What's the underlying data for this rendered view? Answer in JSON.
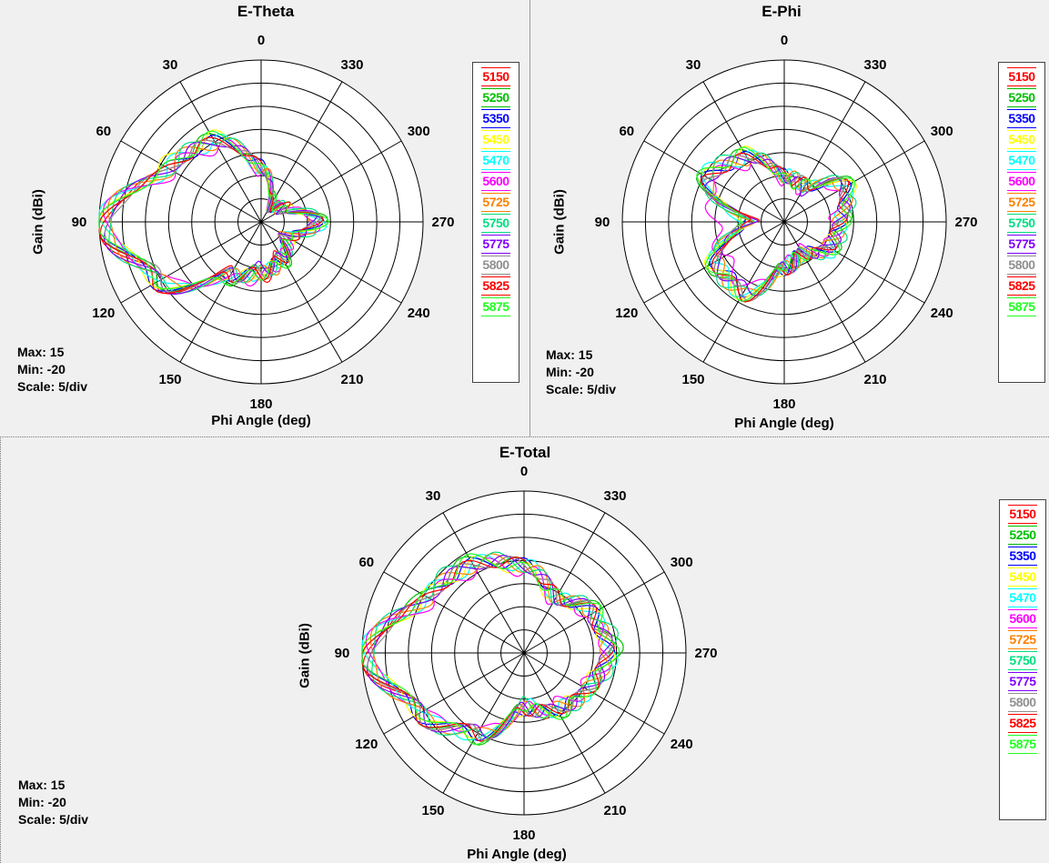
{
  "panels": [
    {
      "id": "theta",
      "title": "E-Theta",
      "xlabel": "Phi Angle  (deg)",
      "ylabel": "Gain (dBi)",
      "max_label": "Max: 15",
      "min_label": "Min: -20",
      "scale_label": "Scale: 5/div"
    },
    {
      "id": "phi",
      "title": "E-Phi",
      "xlabel": "Phi Angle  (deg)",
      "ylabel": "Gain (dBi)",
      "max_label": "Max: 15",
      "min_label": "Min: -20",
      "scale_label": "Scale: 5/div"
    },
    {
      "id": "total",
      "title": "E-Total",
      "xlabel": "Phi Angle  (deg)",
      "ylabel": "Gain (dBi)",
      "max_label": "Max: 15",
      "min_label": "Min: -20",
      "scale_label": "Scale: 5/div"
    }
  ],
  "legend": [
    {
      "label": "5150",
      "color": "#ff0000"
    },
    {
      "label": "5250",
      "color": "#00c000"
    },
    {
      "label": "5350",
      "color": "#0000ff"
    },
    {
      "label": "5450",
      "color": "#ffff00"
    },
    {
      "label": "5470",
      "color": "#00ffff"
    },
    {
      "label": "5600",
      "color": "#ff00ff"
    },
    {
      "label": "5725",
      "color": "#ff8000"
    },
    {
      "label": "5750",
      "color": "#00e080"
    },
    {
      "label": "5775",
      "color": "#8000ff"
    },
    {
      "label": "5800",
      "color": "#909090"
    },
    {
      "label": "5825",
      "color": "#ff0000"
    },
    {
      "label": "5875",
      "color": "#20ff20"
    }
  ],
  "chart_data": [
    {
      "type": "polar-line",
      "title": "E-Theta",
      "xlabel": "Phi Angle  (deg)",
      "ylabel": "Gain (dBi)",
      "rlim": [
        -20,
        15
      ],
      "r_step": 5,
      "grid": true,
      "legend_position": "right",
      "angle_ticks": [
        0,
        30,
        60,
        90,
        120,
        150,
        180,
        210,
        240,
        270,
        300,
        330
      ],
      "angle_direction": "counterclockwise",
      "zero_location": "top",
      "phi": [
        0,
        30,
        60,
        90,
        120,
        150,
        180,
        210,
        240,
        270,
        300,
        330
      ],
      "series": [
        {
          "name": "5150",
          "values": [
            -8,
            0,
            3,
            14,
            6,
            -8,
            -8,
            -12,
            -14,
            -8,
            -15,
            -16
          ]
        },
        {
          "name": "5250",
          "values": [
            -8,
            1,
            3,
            14,
            5,
            -6,
            -10,
            -10,
            -13,
            -7,
            -14,
            -15
          ]
        },
        {
          "name": "5350",
          "values": [
            -8,
            0,
            3,
            14,
            6,
            -7,
            -9,
            -11,
            -14,
            -8,
            -15,
            -16
          ]
        },
        {
          "name": "5450",
          "values": [
            -9,
            1,
            4,
            13,
            6,
            -7,
            -9,
            -11,
            -13,
            -8,
            -14,
            -16
          ]
        },
        {
          "name": "5470",
          "values": [
            -9,
            0,
            3,
            14,
            5,
            -6,
            -9,
            -11,
            -14,
            -7,
            -15,
            -16
          ]
        },
        {
          "name": "5600",
          "values": [
            -9,
            -1,
            2,
            14,
            4,
            -6,
            -8,
            -11,
            -13,
            -8,
            -14,
            -16
          ]
        },
        {
          "name": "5725",
          "values": [
            -8,
            0,
            3,
            14,
            5,
            -7,
            -9,
            -10,
            -14,
            -8,
            -15,
            -16
          ]
        },
        {
          "name": "5750",
          "values": [
            -8,
            1,
            3,
            14,
            6,
            -7,
            -9,
            -11,
            -13,
            -7,
            -14,
            -16
          ]
        },
        {
          "name": "5775",
          "values": [
            -8,
            0,
            3,
            14,
            6,
            -7,
            -10,
            -11,
            -14,
            -8,
            -15,
            -16
          ]
        },
        {
          "name": "5800",
          "values": [
            -8,
            0,
            3,
            13,
            5,
            -7,
            -9,
            -11,
            -14,
            -8,
            -15,
            -16
          ]
        },
        {
          "name": "5825",
          "values": [
            -8,
            0,
            3,
            14,
            6,
            -7,
            -9,
            -11,
            -13,
            -8,
            -14,
            -16
          ]
        },
        {
          "name": "5875",
          "values": [
            -9,
            1,
            3,
            14,
            5,
            -6,
            -9,
            -10,
            -14,
            -7,
            -15,
            -15
          ]
        }
      ]
    },
    {
      "type": "polar-line",
      "title": "E-Phi",
      "xlabel": "Phi Angle  (deg)",
      "ylabel": "Gain (dBi)",
      "rlim": [
        -20,
        15
      ],
      "r_step": 5,
      "grid": true,
      "legend_position": "right",
      "angle_ticks": [
        0,
        30,
        60,
        90,
        120,
        150,
        180,
        210,
        240,
        270,
        300,
        330
      ],
      "angle_direction": "counterclockwise",
      "zero_location": "top",
      "phi": [
        0,
        30,
        60,
        90,
        120,
        150,
        180,
        210,
        240,
        270,
        300,
        330
      ],
      "series": [
        {
          "name": "5150",
          "values": [
            -10,
            -4,
            -1,
            -14,
            -3,
            -2,
            -10,
            -12,
            -9,
            -8,
            -5,
            -11
          ]
        },
        {
          "name": "5250",
          "values": [
            -10,
            -3,
            0,
            -12,
            -2,
            -2,
            -11,
            -12,
            -8,
            -7,
            -4,
            -11
          ]
        },
        {
          "name": "5350",
          "values": [
            -10,
            -4,
            -1,
            -13,
            -3,
            -3,
            -10,
            -13,
            -9,
            -8,
            -5,
            -12
          ]
        },
        {
          "name": "5450",
          "values": [
            -11,
            -3,
            -1,
            -12,
            -2,
            -2,
            -10,
            -12,
            -9,
            -8,
            -4,
            -11
          ]
        },
        {
          "name": "5470",
          "values": [
            -10,
            -4,
            0,
            -11,
            -3,
            -2,
            -11,
            -12,
            -8,
            -8,
            -5,
            -11
          ]
        },
        {
          "name": "5600",
          "values": [
            -11,
            -5,
            -2,
            -5,
            -5,
            -4,
            -11,
            -13,
            -9,
            -9,
            -6,
            -12
          ]
        },
        {
          "name": "5725",
          "values": [
            -10,
            -4,
            -1,
            -12,
            -3,
            -2,
            -10,
            -12,
            -9,
            -8,
            -5,
            -11
          ]
        },
        {
          "name": "5750",
          "values": [
            -10,
            -3,
            0,
            -12,
            -2,
            -2,
            -10,
            -12,
            -8,
            -7,
            -4,
            -11
          ]
        },
        {
          "name": "5775",
          "values": [
            -10,
            -4,
            -1,
            -13,
            -3,
            -3,
            -10,
            -12,
            -9,
            -8,
            -5,
            -12
          ]
        },
        {
          "name": "5800",
          "values": [
            -10,
            -4,
            -1,
            -12,
            -3,
            -2,
            -10,
            -12,
            -9,
            -8,
            -5,
            -11
          ]
        },
        {
          "name": "5825",
          "values": [
            -10,
            -4,
            -1,
            -13,
            -3,
            -2,
            -10,
            -12,
            -9,
            -8,
            -5,
            -11
          ]
        },
        {
          "name": "5875",
          "values": [
            -11,
            -3,
            0,
            -12,
            -2,
            -2,
            -11,
            -12,
            -8,
            -7,
            -4,
            -11
          ]
        }
      ]
    },
    {
      "type": "polar-line",
      "title": "E-Total",
      "xlabel": "Phi Angle  (deg)",
      "ylabel": "Gain (dBi)",
      "rlim": [
        -20,
        15
      ],
      "r_step": 5,
      "grid": true,
      "legend_position": "right",
      "angle_ticks": [
        0,
        30,
        60,
        90,
        120,
        150,
        180,
        210,
        240,
        270,
        300,
        330
      ],
      "angle_direction": "counterclockwise",
      "zero_location": "top",
      "phi": [
        0,
        30,
        60,
        90,
        120,
        150,
        180,
        210,
        240,
        270,
        300,
        330
      ],
      "series": [
        {
          "name": "5150",
          "values": [
            -1,
            2,
            4,
            14,
            6,
            0,
            -8,
            -6,
            -4,
            -2,
            -3,
            -6
          ]
        },
        {
          "name": "5250",
          "values": [
            -1,
            3,
            5,
            14,
            6,
            1,
            -9,
            -5,
            -4,
            0,
            -2,
            -6
          ]
        },
        {
          "name": "5350",
          "values": [
            -1,
            2,
            4,
            14,
            6,
            0,
            -8,
            -6,
            -4,
            -2,
            -3,
            -6
          ]
        },
        {
          "name": "5450",
          "values": [
            -2,
            2,
            4,
            13,
            6,
            0,
            -8,
            -6,
            -5,
            -2,
            -3,
            -7
          ]
        },
        {
          "name": "5470",
          "values": [
            -1,
            2,
            4,
            14,
            5,
            1,
            -9,
            -6,
            -4,
            -1,
            -3,
            -6
          ]
        },
        {
          "name": "5600",
          "values": [
            -2,
            1,
            3,
            14,
            5,
            -1,
            -8,
            -7,
            -5,
            -2,
            -4,
            -7
          ]
        },
        {
          "name": "5725",
          "values": [
            -1,
            2,
            4,
            14,
            6,
            0,
            -8,
            -6,
            -4,
            -2,
            -3,
            -6
          ]
        },
        {
          "name": "5750",
          "values": [
            -1,
            3,
            5,
            14,
            6,
            1,
            -9,
            -5,
            -4,
            0,
            -2,
            -6
          ]
        },
        {
          "name": "5775",
          "values": [
            -1,
            2,
            4,
            14,
            6,
            0,
            -8,
            -6,
            -4,
            -2,
            -3,
            -6
          ]
        },
        {
          "name": "5800",
          "values": [
            -1,
            2,
            4,
            13,
            6,
            0,
            -8,
            -6,
            -4,
            -2,
            -3,
            -6
          ]
        },
        {
          "name": "5825",
          "values": [
            -1,
            2,
            4,
            14,
            6,
            0,
            -8,
            -6,
            -4,
            -2,
            -3,
            -6
          ]
        },
        {
          "name": "5875",
          "values": [
            -2,
            3,
            4,
            14,
            5,
            1,
            -9,
            -5,
            -4,
            -1,
            -2,
            -6
          ]
        }
      ]
    }
  ]
}
